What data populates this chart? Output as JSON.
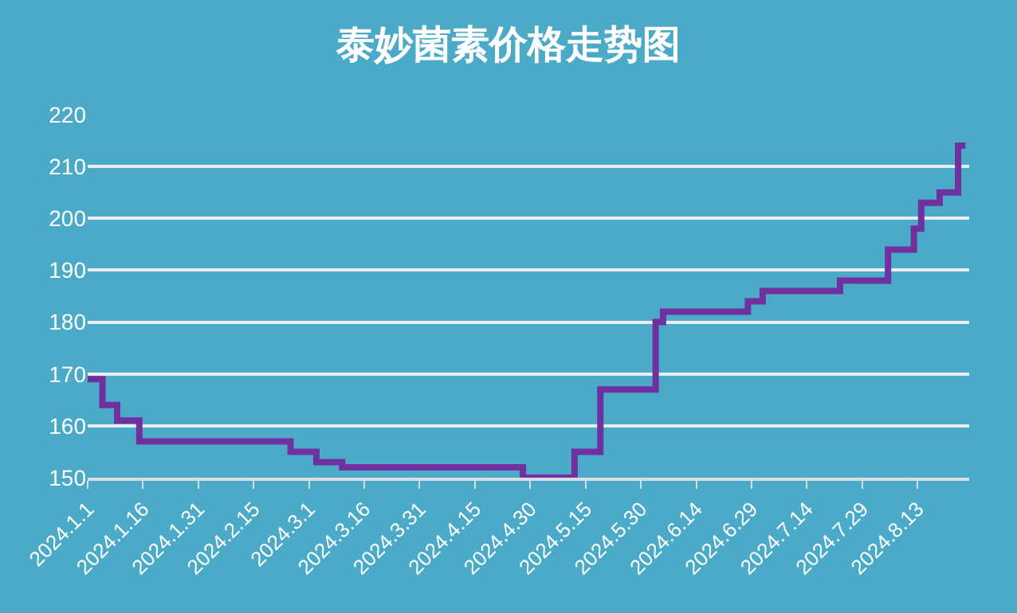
{
  "chart_data": {
    "type": "step",
    "title": "泰妙菌素价格走势图",
    "x": [
      "2024-01-01",
      "2024-01-05",
      "2024-01-09",
      "2024-01-15",
      "2024-02-25",
      "2024-03-03",
      "2024-03-10",
      "2024-04-28",
      "2024-05-12",
      "2024-05-19",
      "2024-06-03",
      "2024-06-05",
      "2024-06-28",
      "2024-07-02",
      "2024-07-23",
      "2024-08-05",
      "2024-08-12",
      "2024-08-14",
      "2024-08-19",
      "2024-08-24",
      "2024-08-26"
    ],
    "series": [
      {
        "color": "#7030a0",
        "values": [
          169,
          164,
          161,
          157,
          155,
          153,
          152,
          150,
          155,
          167,
          180,
          182,
          184,
          186,
          188,
          194,
          198,
          203,
          205,
          214,
          214
        ]
      }
    ],
    "xlim": [
      "2024-01-01",
      "2024-08-27"
    ],
    "xticks": [
      {
        "value": "2024-01-01",
        "label": "2024.1.1"
      },
      {
        "value": "2024-01-16",
        "label": "2024.1.16"
      },
      {
        "value": "2024-01-31",
        "label": "2024.1.31"
      },
      {
        "value": "2024-02-15",
        "label": "2024.2.15"
      },
      {
        "value": "2024-03-01",
        "label": "2024.3.1"
      },
      {
        "value": "2024-03-16",
        "label": "2024.3.16"
      },
      {
        "value": "2024-03-31",
        "label": "2024.3.31"
      },
      {
        "value": "2024-04-15",
        "label": "2024.4.15"
      },
      {
        "value": "2024-04-30",
        "label": "2024.4.30"
      },
      {
        "value": "2024-05-15",
        "label": "2024.5.15"
      },
      {
        "value": "2024-05-30",
        "label": "2024.5.30"
      },
      {
        "value": "2024-06-14",
        "label": "2024.6.14"
      },
      {
        "value": "2024-06-29",
        "label": "2024.6.29"
      },
      {
        "value": "2024-07-14",
        "label": "2024.7.14"
      },
      {
        "value": "2024-07-29",
        "label": "2024.7.29"
      },
      {
        "value": "2024-08-13",
        "label": "2024.8.13"
      }
    ],
    "ylim": [
      150,
      220
    ],
    "yticks": [
      150,
      160,
      170,
      180,
      190,
      200,
      210,
      220
    ],
    "grid": "y",
    "legend": false,
    "marker": "none",
    "line_style": "solid"
  }
}
